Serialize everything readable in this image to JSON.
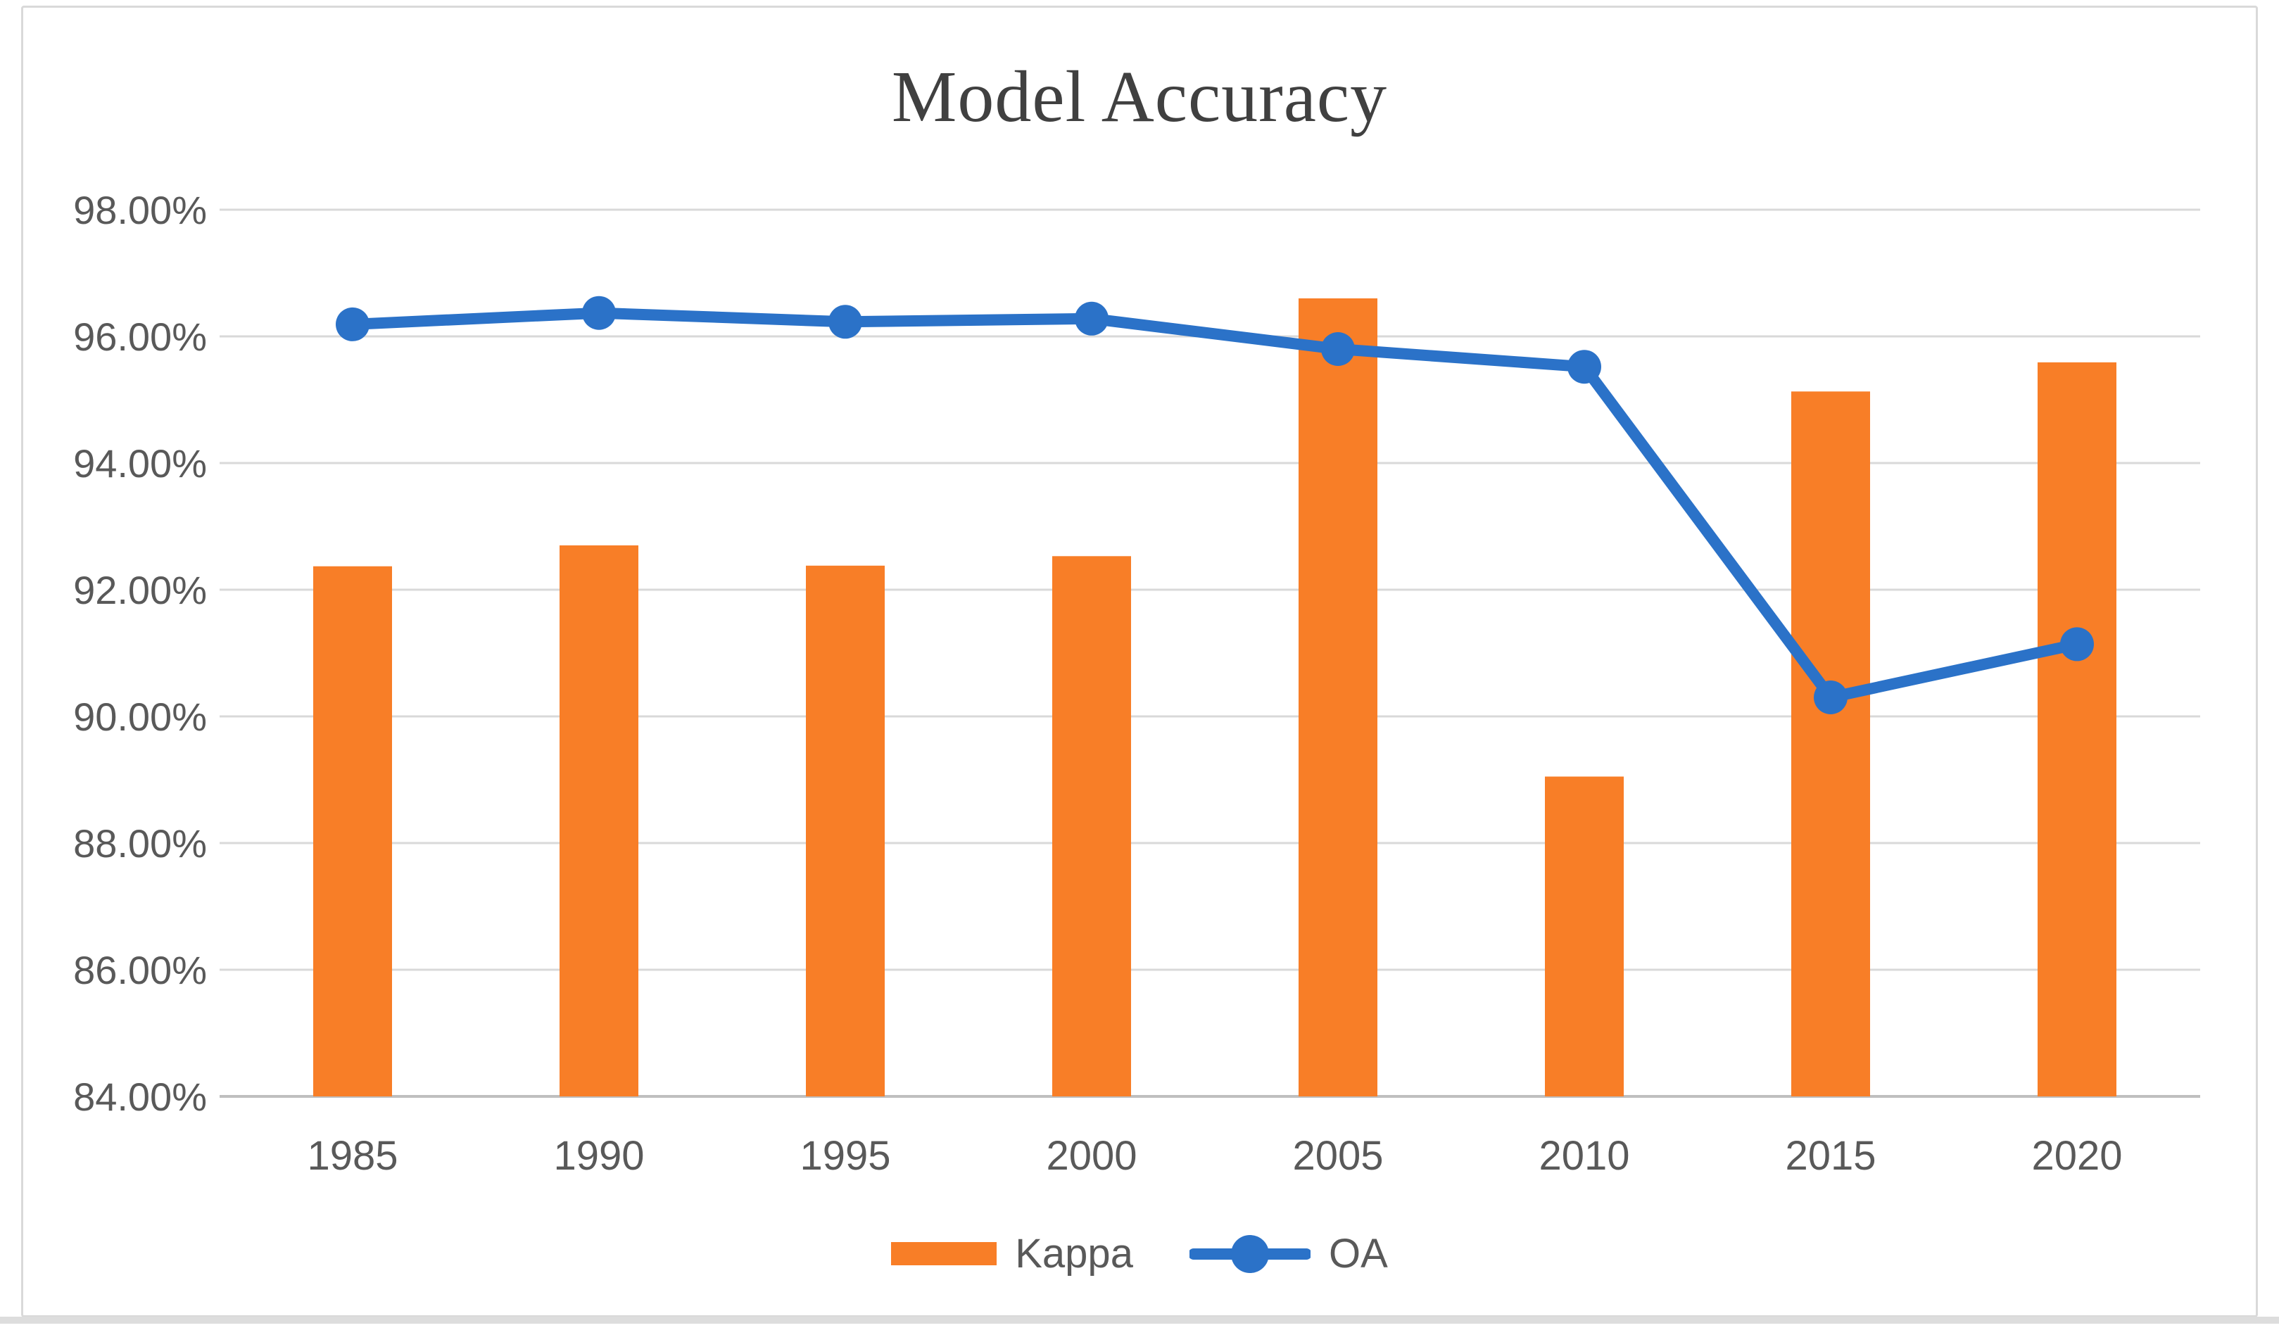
{
  "chart_data": {
    "type": "combo",
    "title": "Model Accuracy",
    "categories": [
      "1985",
      "1990",
      "1995",
      "2000",
      "2005",
      "2010",
      "2015",
      "2020"
    ],
    "series": [
      {
        "name": "Kappa",
        "type": "bar",
        "color": "#F87E27",
        "values": [
          92.37,
          92.7,
          92.38,
          92.53,
          96.6,
          89.05,
          95.13,
          95.59
        ]
      },
      {
        "name": "OA",
        "type": "line",
        "color": "#2B72C8",
        "values": [
          96.19,
          96.37,
          96.23,
          96.28,
          95.8,
          95.52,
          90.3,
          91.14
        ]
      }
    ],
    "y_axis": {
      "min": 84,
      "max": 98,
      "step": 2,
      "tick_labels": [
        "98.00%",
        "96.00%",
        "94.00%",
        "92.00%",
        "90.00%",
        "88.00%",
        "86.00%",
        "84.00%"
      ]
    },
    "x_axis": {
      "tick_labels": [
        "1985",
        "1990",
        "1995",
        "2000",
        "2005",
        "2010",
        "2015",
        "2020"
      ]
    },
    "legend_position": "bottom",
    "grid": true,
    "ylabel": "",
    "xlabel": ""
  },
  "styles": {
    "background": "#FFFFFF",
    "border": "#D9D9D9",
    "gridline": "#D9D9D9",
    "axis_line": "#BFBFBF",
    "tick_text": "#595959",
    "title_text": "#404040",
    "bar_color": "#F87E27",
    "line_color": "#2B72C8"
  }
}
